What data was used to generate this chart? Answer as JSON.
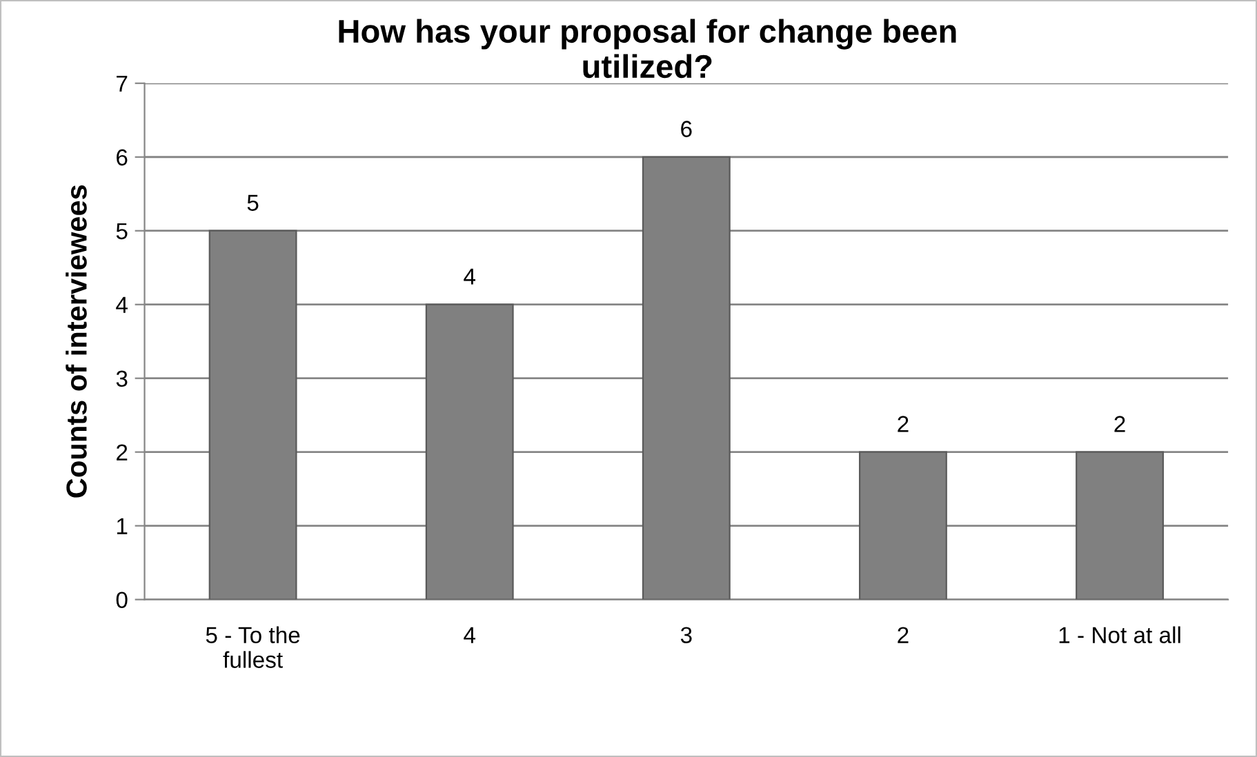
{
  "chart_data": {
    "type": "bar",
    "title": "How has your proposal for change been\nutilized?",
    "ylabel": "Counts of interviewees",
    "categories": [
      "5 - To the\nfullest",
      "4",
      "3",
      "2",
      "1 - Not at all"
    ],
    "values": [
      5,
      4,
      6,
      2,
      2
    ],
    "color": "#808080",
    "ylim": [
      0,
      7
    ],
    "yticks": [
      0,
      1,
      2,
      3,
      4,
      5,
      6,
      7
    ],
    "grid": "y",
    "data_labels": true
  }
}
